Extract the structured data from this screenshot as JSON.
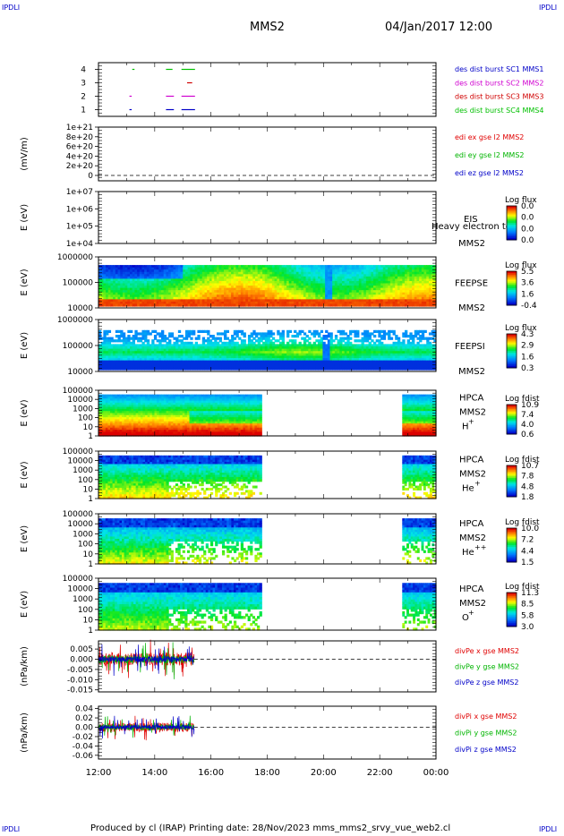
{
  "header": {
    "corner_label": "IPDLI",
    "spacecraft": "MMS2",
    "datetime": "04/Jan/2017 12:00"
  },
  "footer": {
    "text": "Produced by cl (IRAP)   Printing date: 28/Nov/2023   mms_mms2_srvy_vue_web2.cl"
  },
  "colors": {
    "mms1": "#0000c8",
    "mms2": "#d000d0",
    "mms3": "#d00000",
    "mms4": "#00c000",
    "ex": "#e00000",
    "ey": "#00b400",
    "ez": "#0000c8"
  },
  "chart_data": [
    {
      "type": "line",
      "panel": "burst",
      "yticks": [
        "4",
        "3",
        "2",
        "1"
      ],
      "ylim": [
        0.5,
        4.5
      ],
      "legend": [
        {
          "name": "des dist burst SC1 MMS1",
          "color": "#0000c8"
        },
        {
          "name": "des dist burst SC2 MMS2",
          "color": "#d000d0"
        },
        {
          "name": "des dist burst SC3 MMS3",
          "color": "#d00000"
        },
        {
          "name": "des dist burst SC4 MMS4",
          "color": "#00c000"
        }
      ],
      "segments": [
        {
          "level": 4,
          "color": "#00c000",
          "x": [
            13.2,
            13.25
          ]
        },
        {
          "level": 4,
          "color": "#00c000",
          "x": [
            14.4,
            14.6
          ]
        },
        {
          "level": 4,
          "color": "#00c000",
          "x": [
            14.95,
            15.4
          ]
        },
        {
          "level": 3,
          "color": "#d00000",
          "x": [
            15.15,
            15.3
          ]
        },
        {
          "level": 2,
          "color": "#d000d0",
          "x": [
            13.1,
            13.15
          ]
        },
        {
          "level": 2,
          "color": "#d000d0",
          "x": [
            14.4,
            14.65
          ]
        },
        {
          "level": 2,
          "color": "#d000d0",
          "x": [
            14.95,
            15.4
          ]
        },
        {
          "level": 1,
          "color": "#0000c8",
          "x": [
            13.1,
            13.15
          ]
        },
        {
          "level": 1,
          "color": "#0000c8",
          "x": [
            14.4,
            14.65
          ]
        },
        {
          "level": 1,
          "color": "#0000c8",
          "x": [
            14.95,
            15.4
          ]
        }
      ]
    },
    {
      "type": "line",
      "panel": "edi",
      "ylabel": "(mV/m)",
      "yticks": [
        "1e+21",
        "8e+20",
        "6e+20",
        "4e+20",
        "2e+20",
        "0"
      ],
      "ylim": [
        0,
        1e+21
      ],
      "legend": [
        {
          "name": "edi ex gse l2 MMS2",
          "color": "#e00000"
        },
        {
          "name": "edi ey gse l2 MMS2",
          "color": "#00b400"
        },
        {
          "name": "edi ez gse l2 MMS2",
          "color": "#0000c8"
        }
      ]
    },
    {
      "type": "heatmap",
      "panel": "eis",
      "ylabel": "E (eV)",
      "yticks": [
        "1e+07",
        "1e+06",
        "1e+05",
        "1e+04"
      ],
      "instrument": "EIS",
      "overlay_text": "Heavy electron to",
      "spacecraft": "MMS2",
      "colorbar": {
        "title": "Log flux",
        "ticks": [
          "0.0",
          "0.0",
          "0.0",
          "0.0"
        ]
      }
    },
    {
      "type": "heatmap",
      "panel": "feeps_e",
      "ylabel": "E (eV)",
      "yticks": [
        "1000000",
        "100000",
        "10000"
      ],
      "instrument": "FEEPSE",
      "spacecraft": "MMS2",
      "colorbar": {
        "title": "Log flux",
        "ticks": [
          "5.5",
          "3.6",
          "1.6",
          "-0.4"
        ]
      }
    },
    {
      "type": "heatmap",
      "panel": "feeps_i",
      "ylabel": "E (eV)",
      "yticks": [
        "1000000",
        "100000",
        "10000"
      ],
      "instrument": "FEEPSI",
      "spacecraft": "MMS2",
      "colorbar": {
        "title": "Log flux",
        "ticks": [
          "4.3",
          "2.9",
          "1.6",
          "0.3"
        ]
      }
    },
    {
      "type": "heatmap",
      "panel": "hpca_h",
      "ylabel": "E (eV)",
      "yticks": [
        "100000",
        "10000",
        "1000",
        "100",
        "10",
        "1"
      ],
      "instrument": "HPCA",
      "spacecraft": "MMS2",
      "species": "H",
      "species_sup": "+",
      "colorbar": {
        "title": "Log fdist",
        "ticks": [
          "10.9",
          "7.4",
          "4.0",
          "0.6"
        ]
      }
    },
    {
      "type": "heatmap",
      "panel": "hpca_he1",
      "ylabel": "E (eV)",
      "yticks": [
        "100000",
        "10000",
        "1000",
        "100",
        "10",
        "1"
      ],
      "instrument": "HPCA",
      "spacecraft": "MMS2",
      "species": "He",
      "species_sup": "+",
      "colorbar": {
        "title": "Log fdist",
        "ticks": [
          "10.7",
          "7.8",
          "4.8",
          "1.8"
        ]
      }
    },
    {
      "type": "heatmap",
      "panel": "hpca_he2",
      "ylabel": "E (eV)",
      "yticks": [
        "100000",
        "10000",
        "1000",
        "100",
        "10",
        "1"
      ],
      "instrument": "HPCA",
      "spacecraft": "MMS2",
      "species": "He",
      "species_sup": "++",
      "colorbar": {
        "title": "Log fdist",
        "ticks": [
          "10.0",
          "7.2",
          "4.4",
          "1.5"
        ]
      }
    },
    {
      "type": "heatmap",
      "panel": "hpca_o",
      "ylabel": "E (eV)",
      "yticks": [
        "100000",
        "10000",
        "1000",
        "100",
        "10",
        "1"
      ],
      "instrument": "HPCA",
      "spacecraft": "MMS2",
      "species": "O",
      "species_sup": "+",
      "colorbar": {
        "title": "Log fdist",
        "ticks": [
          "11.3",
          "8.5",
          "5.8",
          "3.0"
        ]
      }
    },
    {
      "type": "line",
      "panel": "divpe",
      "ylabel": "(nPa/km)",
      "yticks": [
        "0.005",
        "0.000",
        "-0.005",
        "-0.010",
        "-0.015"
      ],
      "ylim": [
        -0.016,
        0.009
      ],
      "legend": [
        {
          "name": "divPe x gse MMS2",
          "color": "#e00000"
        },
        {
          "name": "divPe y gse MMS2",
          "color": "#00b400"
        },
        {
          "name": "divPe z gse MMS2",
          "color": "#0000c8"
        }
      ]
    },
    {
      "type": "line",
      "panel": "divpi",
      "ylabel": "(nPa/km)",
      "yticks": [
        "0.04",
        "0.02",
        "0.00",
        "-0.02",
        "-0.04",
        "-0.06"
      ],
      "ylim": [
        -0.068,
        0.045
      ],
      "legend": [
        {
          "name": "divPi x gse MMS2",
          "color": "#e00000"
        },
        {
          "name": "divPi y gse MMS2",
          "color": "#00b400"
        },
        {
          "name": "divPi z gse MMS2",
          "color": "#0000c8"
        }
      ]
    }
  ],
  "xaxis": {
    "range_hours": [
      12,
      24
    ],
    "ticks": [
      "12:00",
      "14:00",
      "16:00",
      "18:00",
      "20:00",
      "22:00",
      "00:00"
    ]
  }
}
